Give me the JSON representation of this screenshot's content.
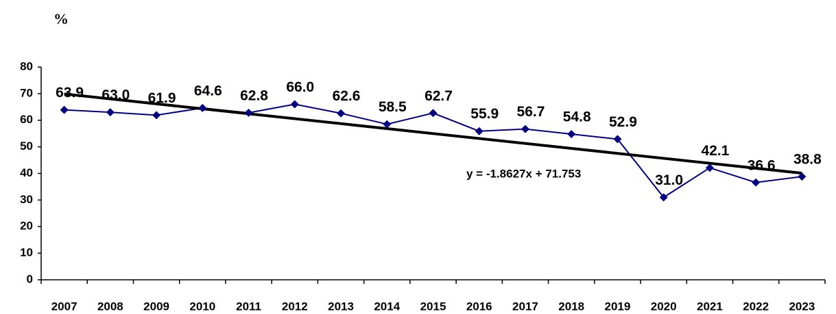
{
  "chart_data": {
    "type": "line",
    "y_axis_label": "%",
    "categories": [
      "2007",
      "2008",
      "2009",
      "2010",
      "2011",
      "2012",
      "2013",
      "2014",
      "2015",
      "2016",
      "2017",
      "2018",
      "2019",
      "2020",
      "2021",
      "2022",
      "2023"
    ],
    "series": [
      {
        "color": "#000080",
        "values": [
          63.9,
          63.0,
          61.9,
          64.6,
          62.8,
          66.0,
          62.6,
          58.5,
          62.7,
          55.9,
          56.7,
          54.8,
          52.9,
          31.0,
          42.1,
          36.6,
          38.8
        ],
        "value_labels": [
          "63.9",
          "63.0",
          "61.9",
          "64.6",
          "62.8",
          "66.0",
          "62.6",
          "58.5",
          "62.7",
          "55.9",
          "56.7",
          "54.8",
          "52.9",
          "31.0",
          "42.1",
          "36.6",
          "38.8"
        ]
      }
    ],
    "trendline": {
      "label": "y = -1.8627x + 71.753",
      "slope": -1.8627,
      "intercept": 71.753,
      "color": "#000000"
    },
    "ylim": [
      0,
      80
    ],
    "yticks": [
      0,
      10,
      20,
      30,
      40,
      50,
      60,
      70,
      80
    ],
    "grid": false
  }
}
